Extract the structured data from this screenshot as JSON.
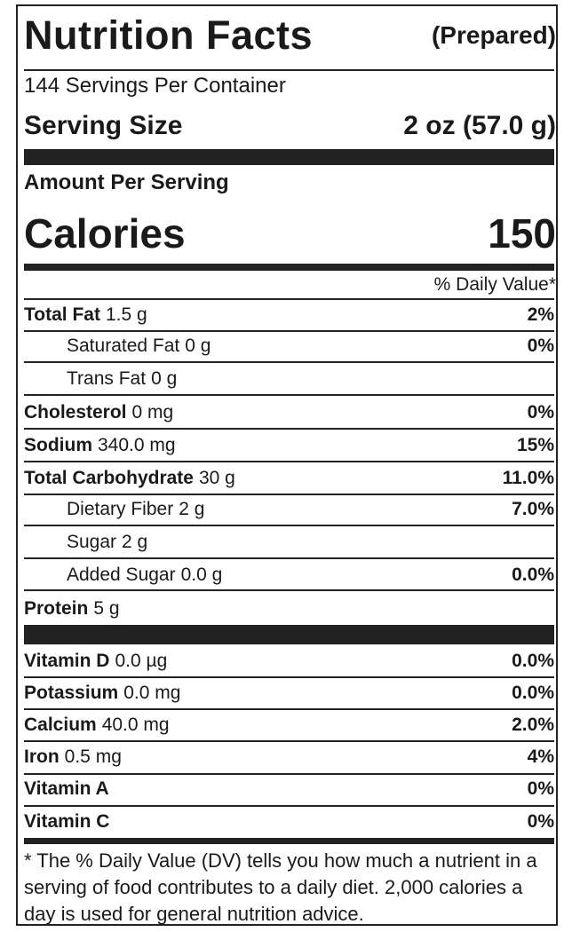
{
  "header": {
    "title": "Nutrition Facts",
    "subtitle": "(Prepared)"
  },
  "servings_per_container": "144 Servings Per Container",
  "serving_size": {
    "label": "Serving Size",
    "value": "2 oz (57.0 g)"
  },
  "amount_per_serving": "Amount Per Serving",
  "calories": {
    "label": "Calories",
    "value": "150"
  },
  "daily_value_header": "% Daily Value*",
  "nutrients": [
    {
      "name": "Total Fat",
      "amount": "1.5 g",
      "dv": "2%"
    },
    {
      "name": "Saturated Fat",
      "amount": "0 g",
      "dv": "0%"
    },
    {
      "name": "Trans Fat",
      "amount": "0 g"
    },
    {
      "name": "Cholesterol",
      "amount": "0 mg",
      "dv": "0%"
    },
    {
      "name": "Sodium",
      "amount": "340.0 mg",
      "dv": "15%"
    },
    {
      "name": "Total Carbohydrate",
      "amount": "30 g",
      "dv": "11.0%"
    },
    {
      "name": "Dietary Fiber",
      "amount": "2 g",
      "dv": "7.0%"
    },
    {
      "name": "Sugar",
      "amount": "2 g"
    },
    {
      "name": "Added Sugar",
      "amount": "0.0 g",
      "dv": "0.0%"
    },
    {
      "name": "Protein",
      "amount": "5 g"
    }
  ],
  "vitamins": [
    {
      "name": "Vitamin D",
      "amount": "0.0 µg",
      "dv": "0.0%"
    },
    {
      "name": "Potassium",
      "amount": "0.0 mg",
      "dv": "0.0%"
    },
    {
      "name": "Calcium",
      "amount": "40.0 mg",
      "dv": "2.0%"
    },
    {
      "name": "Iron",
      "amount": "0.5 mg",
      "dv": "4%"
    },
    {
      "name": "Vitamin A",
      "dv": "0%"
    },
    {
      "name": "Vitamin C",
      "dv": "0%"
    }
  ],
  "footnote": "* The % Daily Value (DV) tells you how much a nutrient in a serving of food contributes to a daily diet. 2,000 calories a day is used for general nutrition advice."
}
